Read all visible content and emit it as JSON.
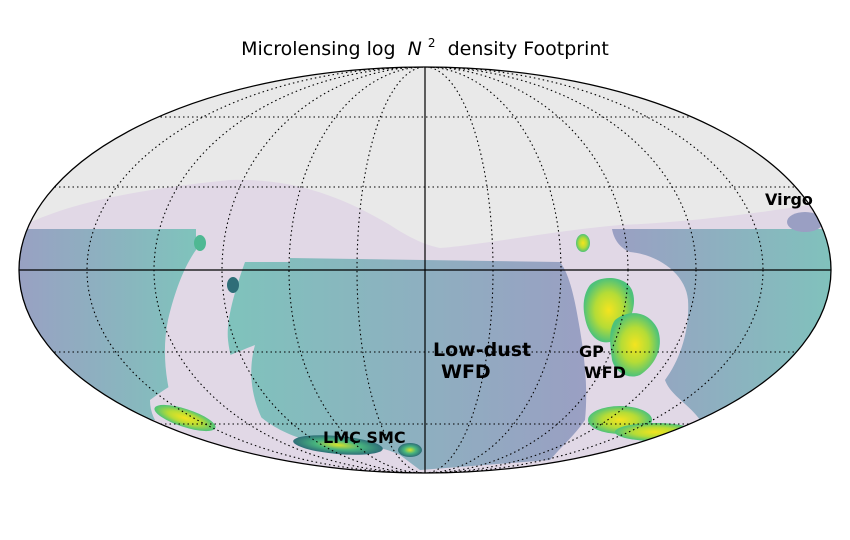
{
  "title_prefix": "Microlensing log",
  "title_symbol": "N",
  "title_exponent": "2",
  "title_suffix": "density Footprint",
  "colors": {
    "background": "#e9e9e9",
    "low_coverage": "#e1d8e6",
    "wfd_blue": "#9a9fc3",
    "teal": "#7fc3c0",
    "green": "#5cc77b",
    "yellow": "#e7e42a",
    "dark_teal": "#2e6e78"
  },
  "labels": {
    "virgo": "Virgo",
    "low_dust_line1": "Low-dust",
    "low_dust_line2": "WFD",
    "gp_line1": "GP",
    "gp_line2": "WFD",
    "lmc_smc": "LMC SMC"
  }
}
